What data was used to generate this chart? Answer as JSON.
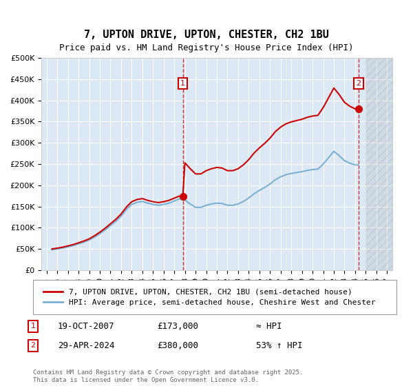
{
  "title": "7, UPTON DRIVE, UPTON, CHESTER, CH2 1BU",
  "subtitle": "Price paid vs. HM Land Registry's House Price Index (HPI)",
  "background_color": "#dce9f5",
  "plot_bg_color": "#dce9f5",
  "ylabel": "",
  "xlabel": "",
  "ylim": [
    0,
    500000
  ],
  "xlim_start": 1995.0,
  "xlim_end": 2027.5,
  "yticks": [
    0,
    50000,
    100000,
    150000,
    200000,
    250000,
    300000,
    350000,
    400000,
    450000,
    500000
  ],
  "ytick_labels": [
    "£0",
    "£50K",
    "£100K",
    "£150K",
    "£200K",
    "£250K",
    "£300K",
    "£350K",
    "£400K",
    "£450K",
    "£500K"
  ],
  "xticks": [
    1995,
    1996,
    1997,
    1998,
    1999,
    2000,
    2001,
    2002,
    2003,
    2004,
    2005,
    2006,
    2007,
    2008,
    2009,
    2010,
    2011,
    2012,
    2013,
    2014,
    2015,
    2016,
    2017,
    2018,
    2019,
    2020,
    2021,
    2022,
    2023,
    2024,
    2025,
    2026,
    2027
  ],
  "hpi_x": [
    1995.5,
    1996.0,
    1996.5,
    1997.0,
    1997.5,
    1998.0,
    1998.5,
    1999.0,
    1999.5,
    2000.0,
    2000.5,
    2001.0,
    2001.5,
    2002.0,
    2002.5,
    2003.0,
    2003.5,
    2004.0,
    2004.5,
    2005.0,
    2005.5,
    2006.0,
    2006.5,
    2007.0,
    2007.5,
    2008.0,
    2008.5,
    2009.0,
    2009.5,
    2010.0,
    2010.5,
    2011.0,
    2011.5,
    2012.0,
    2012.5,
    2013.0,
    2013.5,
    2014.0,
    2014.5,
    2015.0,
    2015.5,
    2016.0,
    2016.5,
    2017.0,
    2017.5,
    2018.0,
    2018.5,
    2019.0,
    2019.5,
    2020.0,
    2020.5,
    2021.0,
    2021.5,
    2022.0,
    2022.5,
    2023.0,
    2023.5,
    2024.0,
    2024.3
  ],
  "hpi_y": [
    48000,
    50000,
    52000,
    55000,
    58000,
    62000,
    66000,
    71000,
    78000,
    86000,
    95000,
    105000,
    115000,
    127000,
    143000,
    155000,
    160000,
    162000,
    158000,
    155000,
    153000,
    155000,
    158000,
    163000,
    168000,
    165000,
    156000,
    148000,
    148000,
    153000,
    156000,
    158000,
    157000,
    153000,
    153000,
    156000,
    162000,
    170000,
    180000,
    188000,
    195000,
    203000,
    213000,
    220000,
    225000,
    228000,
    230000,
    232000,
    235000,
    237000,
    238000,
    250000,
    265000,
    280000,
    270000,
    258000,
    252000,
    248000,
    248000
  ],
  "sale1_x": 2007.8,
  "sale1_y": 173000,
  "sale2_x": 2024.33,
  "sale2_y": 380000,
  "marker_color": "#cc0000",
  "hpi_line_color": "#7ab0d4",
  "property_line_color": "#cc0000",
  "future_hatch_start": 2025.0,
  "legend_label1": "7, UPTON DRIVE, UPTON, CHESTER, CH2 1BU (semi-detached house)",
  "legend_label2": "HPI: Average price, semi-detached house, Cheshire West and Chester",
  "annotation1_date": "19-OCT-2007",
  "annotation1_price": "£173,000",
  "annotation1_hpi": "≈ HPI",
  "annotation2_date": "29-APR-2024",
  "annotation2_price": "£380,000",
  "annotation2_hpi": "53% ↑ HPI",
  "footer": "Contains HM Land Registry data © Crown copyright and database right 2025.\nThis data is licensed under the Open Government Licence v3.0.",
  "title_fontsize": 11,
  "subtitle_fontsize": 9,
  "tick_fontsize": 8,
  "legend_fontsize": 8
}
